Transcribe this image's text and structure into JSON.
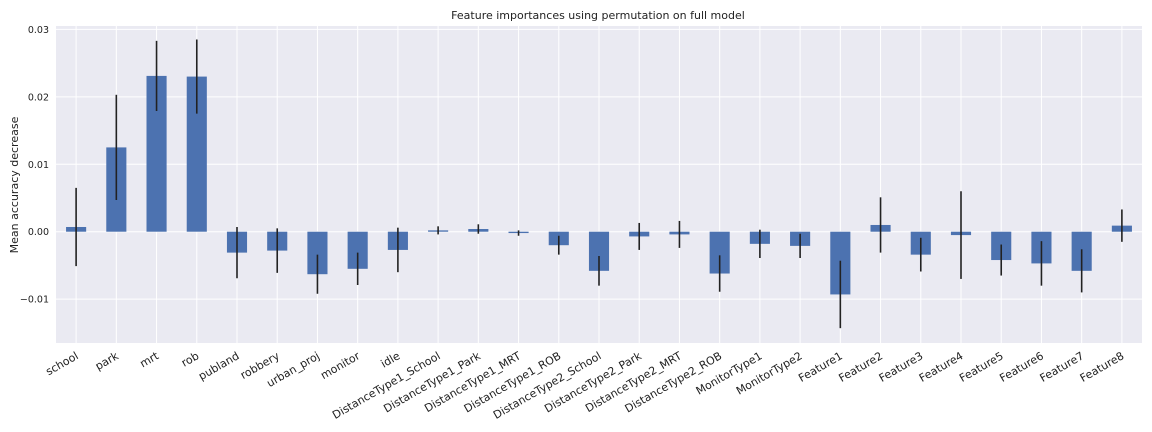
{
  "chart_data": {
    "type": "bar",
    "title": "Feature importances using permutation on full model",
    "xlabel": "",
    "ylabel": "Mean accuracy decrease",
    "ylim": [
      -0.0165,
      0.0305
    ],
    "yticks": [
      -0.01,
      0.0,
      0.01,
      0.02,
      0.03
    ],
    "ytick_labels": [
      "−0.01",
      "0.00",
      "0.01",
      "0.02",
      "0.03"
    ],
    "grid": true,
    "legend": "none",
    "categories": [
      "school",
      "park",
      "mrt",
      "rob",
      "publand",
      "robbery",
      "urban_proj",
      "monitor",
      "idle",
      "DistanceType1_School",
      "DistanceType1_Park",
      "DistanceType1_MRT",
      "DistanceType1_ROB",
      "DistanceType2_School",
      "DistanceType2_Park",
      "DistanceType2_MRT",
      "DistanceType2_ROB",
      "MonitorType1",
      "MonitorType2",
      "Feature1",
      "Feature2",
      "Feature3",
      "Feature4",
      "Feature5",
      "Feature6",
      "Feature7",
      "Feature8"
    ],
    "values": [
      0.0007,
      0.0125,
      0.0231,
      0.023,
      -0.0031,
      -0.0028,
      -0.0063,
      -0.0055,
      -0.0027,
      0.0002,
      0.0004,
      -0.0002,
      -0.002,
      -0.0058,
      -0.0007,
      -0.0004,
      -0.0062,
      -0.0018,
      -0.0021,
      -0.0093,
      0.001,
      -0.0034,
      -0.0005,
      -0.0042,
      -0.0047,
      -0.0058,
      0.0009
    ],
    "errors": [
      0.0058,
      0.0078,
      0.0052,
      0.0055,
      0.0038,
      0.0033,
      0.0029,
      0.0024,
      0.0033,
      0.0006,
      0.0007,
      0.0004,
      0.0014,
      0.0022,
      0.002,
      0.002,
      0.0027,
      0.0021,
      0.0018,
      0.005,
      0.0041,
      0.0025,
      0.0065,
      0.0023,
      0.0033,
      0.0032,
      0.0024
    ],
    "colors": {
      "bar": "#4c72b0",
      "error": "#222222",
      "background": "#eaeaf2",
      "grid": "#ffffff"
    }
  }
}
